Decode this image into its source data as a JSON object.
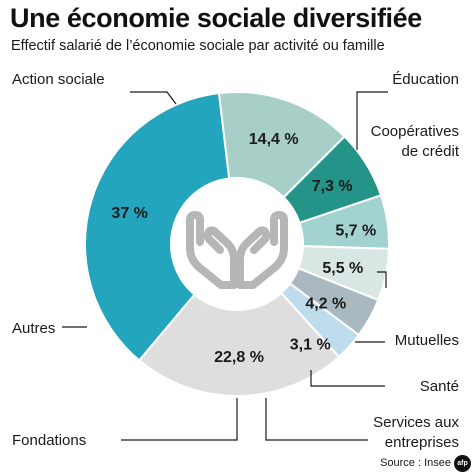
{
  "header": {
    "title": "Une économie sociale diversifiée",
    "subtitle": "Effectif salarié de l’économie sociale par activité ou famille"
  },
  "footer": {
    "source": "Source : Insee",
    "logo_text": "afp"
  },
  "icon": "hands-icon",
  "chart_data": {
    "type": "pie",
    "title": "Une économie sociale diversifiée",
    "subtitle": "Effectif salarié de l’économie sociale par activité ou famille",
    "slices": [
      {
        "label": "Action sociale",
        "value": 37,
        "value_label": "37 %",
        "color": "#23a6bd"
      },
      {
        "label": "Éducation",
        "value": 14.4,
        "value_label": "14,4 %",
        "color": "#a7cec7"
      },
      {
        "label": "Coopératives de crédit",
        "value": 7.3,
        "value_label": "7,3 %",
        "color": "#239487"
      },
      {
        "label": "Mutuelles",
        "value": 5.7,
        "value_label": "5,7 %",
        "color": "#a3d3d1"
      },
      {
        "label": "Santé",
        "value": 5.5,
        "value_label": "5,5 %",
        "color": "#d9e7e4"
      },
      {
        "label": "Services aux entreprises",
        "value": 4.2,
        "value_label": "4,2 %",
        "color": "#aab9c1"
      },
      {
        "label": "Fondations",
        "value": 3.1,
        "value_label": "3,1 %",
        "color": "#bfdcec"
      },
      {
        "label": "Autres",
        "value": 22.8,
        "value_label": "22,8 %",
        "color": "#dededf"
      }
    ]
  }
}
